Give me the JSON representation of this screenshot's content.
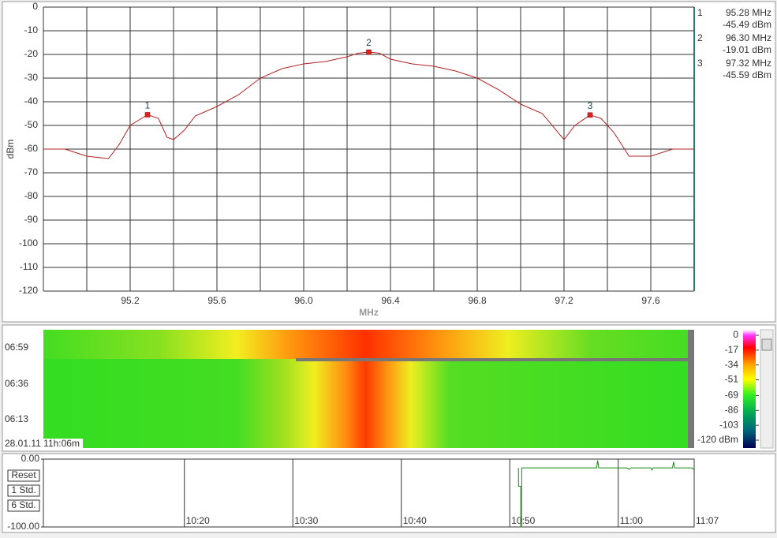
{
  "chart_data": [
    {
      "type": "line",
      "xlabel": "MHz",
      "ylabel": "dBm",
      "color": "#b22222",
      "x": [
        94.8,
        94.9,
        95.0,
        95.1,
        95.15,
        95.2,
        95.28,
        95.33,
        95.37,
        95.4,
        95.45,
        95.5,
        95.6,
        95.7,
        95.8,
        95.9,
        96.0,
        96.1,
        96.2,
        96.25,
        96.3,
        96.35,
        96.4,
        96.5,
        96.6,
        96.7,
        96.8,
        96.9,
        97.0,
        97.1,
        97.2,
        97.25,
        97.32,
        97.37,
        97.43,
        97.5,
        97.6,
        97.7,
        97.8
      ],
      "values": [
        -60,
        -60,
        -63,
        -64,
        -58,
        -50,
        -45.5,
        -47,
        -55,
        -56,
        -52,
        -46,
        -42,
        -37,
        -30,
        -26,
        -24,
        -23,
        -21,
        -19.5,
        -19,
        -19.5,
        -22,
        -24,
        -25,
        -27,
        -30,
        -35,
        -41,
        -45,
        -56,
        -50,
        -45.6,
        -47,
        -53,
        -63,
        -63,
        -60,
        -60
      ],
      "xlim": [
        94.8,
        97.8
      ],
      "ylim": [
        -120,
        0
      ],
      "xticks": [
        95.2,
        95.6,
        {
          "value": 96,
          "label": "96.0"
        },
        96.4,
        96.8,
        97.2,
        97.6
      ],
      "xgrid": [
        95.0,
        95.2,
        95.4,
        95.6,
        95.8,
        96.0,
        96.2,
        96.4,
        96.6,
        96.8,
        97.0,
        97.2,
        97.4,
        97.6
      ],
      "yticks": [
        0,
        -10,
        -20,
        -30,
        -40,
        -50,
        -60,
        -70,
        -80,
        -90,
        -100,
        -110,
        -120
      ],
      "grid": true
    },
    {
      "type": "line",
      "color": "#1a8a1a",
      "x": [
        50.8,
        50.8,
        51.0,
        51.0,
        51.1,
        51.1,
        51.3,
        58.0,
        58.1,
        58.2,
        60.8,
        61.0,
        61.2,
        63.0,
        63.1,
        63.2,
        65.0,
        65.1,
        65.2,
        66.8,
        67.0
      ],
      "values": [
        -13,
        -40,
        -40,
        -100,
        -100,
        -13,
        -13,
        -13,
        -2,
        -13,
        -13,
        -15,
        -13,
        -13,
        -16,
        -13,
        -13,
        -4,
        -13,
        -13,
        -16
      ],
      "xlim": [
        7,
        67
      ],
      "ylim": [
        -100,
        0
      ],
      "xticks": [
        {
          "value": 20,
          "label": "10:20"
        },
        {
          "value": 30,
          "label": "10:30"
        },
        {
          "value": 40,
          "label": "10:40"
        },
        {
          "value": 50,
          "label": "10:50"
        },
        {
          "value": 60,
          "label": "11:00"
        },
        {
          "value": 67,
          "label": "11:07"
        }
      ],
      "yticks": [
        {
          "value": 0,
          "label": "0.00"
        },
        {
          "value": -100,
          "label": "-100.00"
        }
      ]
    }
  ],
  "markers": [
    {
      "label": "1",
      "freq": 95.28,
      "freq_label": "95.28 MHz",
      "level": -45.49,
      "level_label": "-45.49 dBm"
    },
    {
      "label": "2",
      "freq": 96.3,
      "freq_label": "96.30 MHz",
      "level": -19.01,
      "level_label": "-19.01 dBm"
    },
    {
      "label": "3",
      "freq": 97.32,
      "freq_label": "97.32 MHz",
      "level": -45.59,
      "level_label": "-45.59 dBm"
    }
  ],
  "waterfall": {
    "times": [
      "06:59",
      "06:36",
      "06:13"
    ],
    "timestamp": "28.01.11 11h:06m",
    "colorbar": {
      "lim": [
        -120,
        0
      ],
      "ticks": [
        0,
        -17,
        -34,
        -51,
        -69,
        -86,
        -103,
        {
          "value": -120,
          "label": "-120 dBm"
        }
      ]
    }
  },
  "buttons": [
    "Reset",
    "1 Std.",
    "6 Std."
  ]
}
